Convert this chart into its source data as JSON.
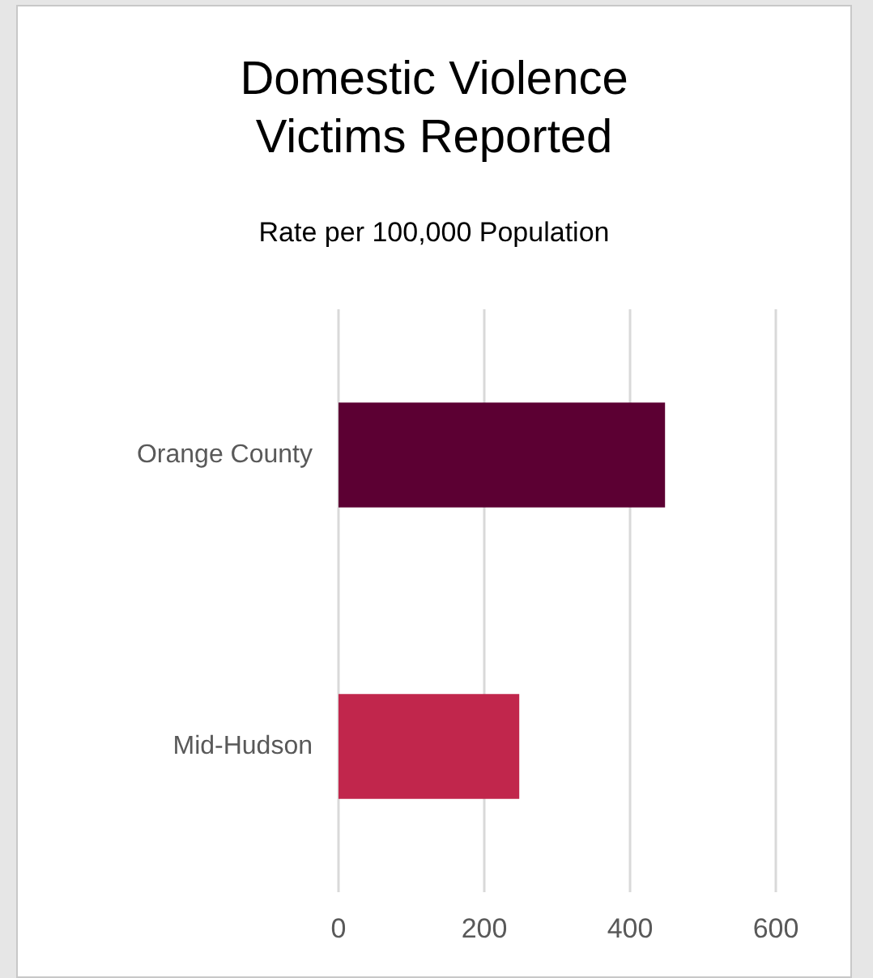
{
  "chart_data": {
    "type": "bar",
    "orientation": "horizontal",
    "title": "Domestic Violence\nVictims Reported",
    "subtitle": "Rate per 100,000 Population",
    "categories": [
      "Orange County",
      "Mid-Hudson"
    ],
    "values": [
      448,
      248
    ],
    "colors": [
      "#5c0033",
      "#c1264c"
    ],
    "xlim": [
      0,
      600
    ],
    "xticks": [
      0,
      200,
      400,
      600
    ],
    "grid": "x"
  }
}
